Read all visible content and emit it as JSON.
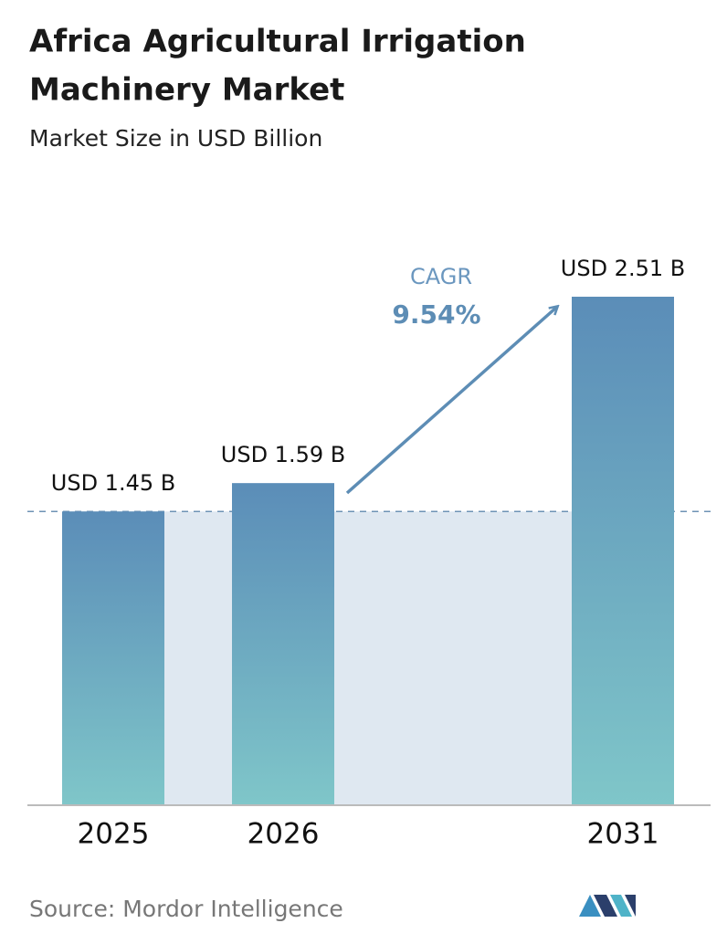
{
  "chart_data": {
    "type": "bar",
    "title": "Africa Agricultural Irrigation",
    "title_line2": "Machinery Market",
    "subtitle": "Market Size in USD Billion",
    "categories": [
      "2025",
      "2026",
      "2031"
    ],
    "values": [
      1.45,
      1.59,
      2.51
    ],
    "value_labels": [
      "USD 1.45 B",
      "USD 1.59 B",
      "USD 2.51 B"
    ],
    "color_top": "#5b8db8",
    "color_bottom": "#7fc6c9",
    "annotation_label": "CAGR",
    "annotation_value": "9.54%",
    "source": "Source:  Mordor Intelligence"
  }
}
